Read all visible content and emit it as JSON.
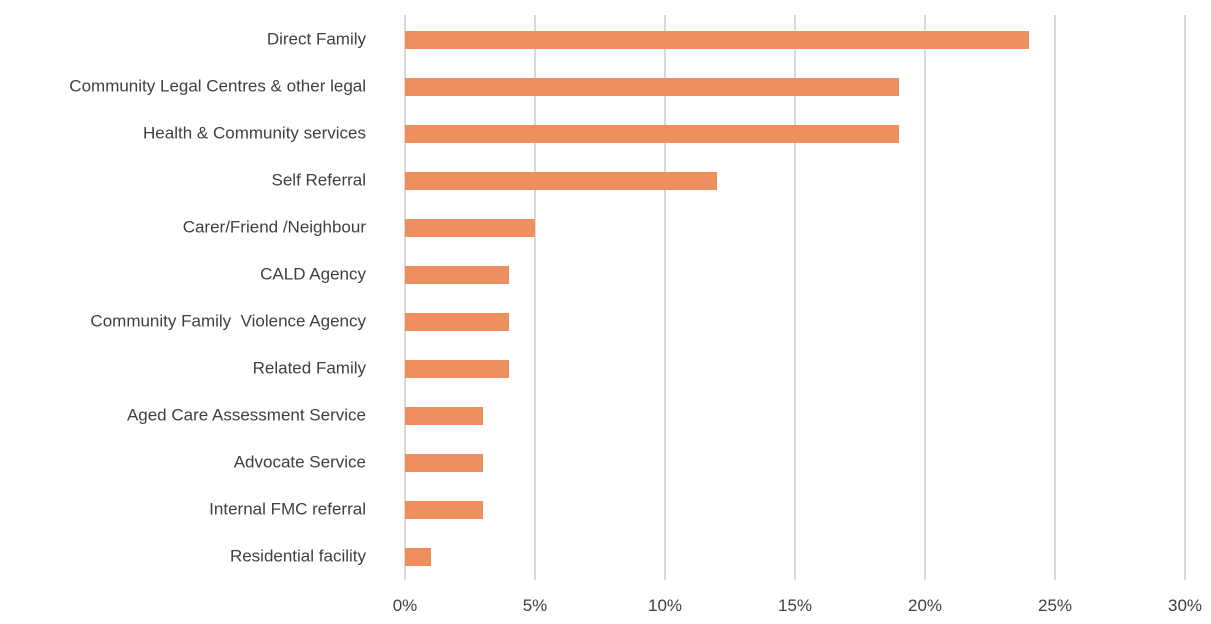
{
  "chart_data": {
    "type": "bar",
    "orientation": "horizontal",
    "categories": [
      "Direct Family",
      "Community Legal Centres & other legal",
      "Health & Community services",
      "Self Referral",
      "Carer/Friend /Neighbour",
      "CALD Agency",
      "Community Family  Violence Agency",
      "Related Family",
      "Aged Care Assessment Service",
      "Advocate Service",
      "Internal FMC referral",
      "Residential facility"
    ],
    "values": [
      24,
      19,
      19,
      12,
      5,
      4,
      4,
      4,
      3,
      3,
      3,
      1
    ],
    "xlim": [
      0,
      30
    ],
    "xticks": [
      0,
      5,
      10,
      15,
      20,
      25,
      30
    ],
    "xtick_labels": [
      "0%",
      "5%",
      "10%",
      "15%",
      "20%",
      "25%",
      "30%"
    ],
    "grid": "vertical",
    "legend": "none",
    "bar_color": "#ed8f5e",
    "grid_color": "#d9d9d9",
    "label_color": "#404040"
  }
}
